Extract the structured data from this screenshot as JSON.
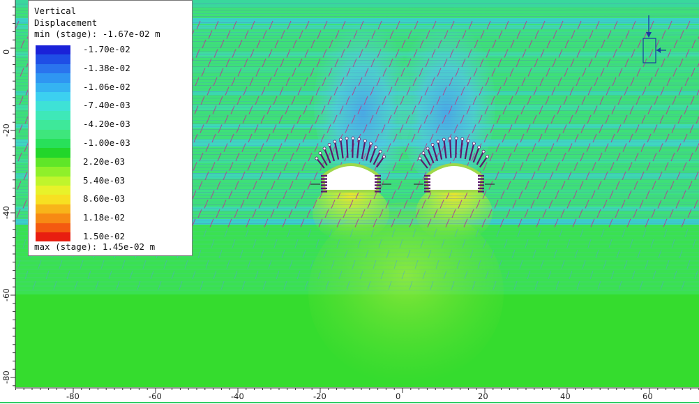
{
  "legend": {
    "title_line1": "Vertical",
    "title_line2": "Displacement",
    "min_label": "min (stage): -1.67e-02 m",
    "max_label": "max (stage): 1.45e-02 m",
    "entries": [
      {
        "label": "-1.70e-02",
        "color": "#1a22d8"
      },
      {
        "label": "",
        "color": "#1f4ee6"
      },
      {
        "label": "-1.38e-02",
        "color": "#2a74ee"
      },
      {
        "label": "",
        "color": "#2f96f2"
      },
      {
        "label": "-1.06e-02",
        "color": "#35b3f2"
      },
      {
        "label": "",
        "color": "#3cd0f0"
      },
      {
        "label": "-7.40e-03",
        "color": "#3ee2d6"
      },
      {
        "label": "",
        "color": "#3ee8b8"
      },
      {
        "label": "-4.20e-03",
        "color": "#3ee89a"
      },
      {
        "label": "",
        "color": "#3ee67c"
      },
      {
        "label": "-1.00e-03",
        "color": "#28e05a"
      },
      {
        "label": "",
        "color": "#22d62a"
      },
      {
        "label": "2.20e-03",
        "color": "#5fe628"
      },
      {
        "label": "",
        "color": "#8ff02a"
      },
      {
        "label": "5.40e-03",
        "color": "#c0f52c"
      },
      {
        "label": "",
        "color": "#e8f22a"
      },
      {
        "label": "8.60e-03",
        "color": "#f7e022"
      },
      {
        "label": "",
        "color": "#f8b41a"
      },
      {
        "label": "1.18e-02",
        "color": "#f78a14"
      },
      {
        "label": "",
        "color": "#f45a10"
      },
      {
        "label": "1.50e-02",
        "color": "#e81e10"
      }
    ]
  },
  "axes": {
    "x_ticks": [
      "-80",
      "-60",
      "-40",
      "-20",
      "0",
      "20",
      "40",
      "60"
    ],
    "y_ticks": [
      "0",
      "-20",
      "-40",
      "-60",
      "-80"
    ]
  },
  "colors": {
    "background_green": "#2fd82a",
    "upper_layers": "#3ae060",
    "joint_lines": "#b2468c",
    "bolts": "#5a1a6a",
    "lining": "#9fd84a"
  }
}
